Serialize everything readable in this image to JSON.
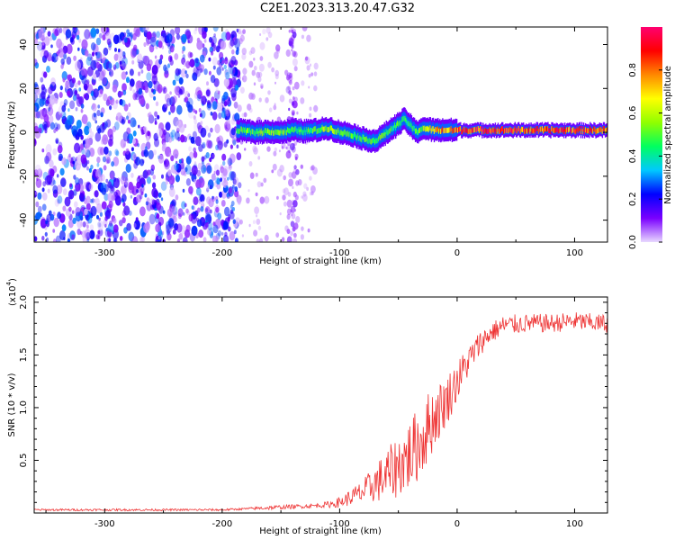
{
  "title": "C2E1.2023.313.20.47.G32",
  "chart_data": [
    {
      "type": "heatmap",
      "xlabel": "Height of straight line (km)",
      "ylabel": "Frequency (Hz)",
      "xlim": [
        -360,
        128
      ],
      "ylim": [
        -50,
        48
      ],
      "x_ticks": [
        -300,
        -200,
        -100,
        0,
        100
      ],
      "y_ticks": [
        -40,
        -20,
        0,
        20,
        40
      ],
      "x_tick_labels": [
        "-300",
        "-200",
        "-100",
        "0",
        "100"
      ],
      "y_tick_labels": [
        "-40",
        "-20",
        "0",
        "20",
        "40"
      ],
      "colorbar": {
        "label": "Normalized spectral amplitude",
        "range": [
          0,
          1
        ],
        "ticks": [
          0.0,
          0.2,
          0.4,
          0.6,
          0.8
        ],
        "tick_labels": [
          "0.0",
          "0.2",
          "0.4",
          "0.6",
          "0.8"
        ],
        "colors": [
          "#e8d8ff",
          "#7a00ff",
          "#0000ff",
          "#00c8ff",
          "#00ff60",
          "#90ff00",
          "#ffff00",
          "#ff8800",
          "#ff0000",
          "#ff0070"
        ]
      },
      "noise_region": {
        "x_range": [
          -360,
          -185
        ],
        "freq_range": [
          -50,
          48
        ],
        "amplitude": 0.15
      },
      "sparse_noise": [
        {
          "x_range": [
            -185,
            -120
          ],
          "amplitude": 0.05
        },
        {
          "x": -140,
          "amplitude": 0.1
        }
      ],
      "signal_trace": {
        "x": [
          -188,
          -180,
          -170,
          -160,
          -150,
          -140,
          -130,
          -120,
          -110,
          -100,
          -90,
          -80,
          -70,
          -60,
          -55,
          -50,
          -45,
          -40,
          -35,
          -30,
          -20,
          -10,
          0,
          20,
          40,
          60,
          80,
          100,
          120,
          128
        ],
        "freq": [
          1,
          0.5,
          0,
          0.5,
          0,
          1,
          0.5,
          1,
          2,
          0,
          -1,
          -3,
          -4,
          0,
          2,
          4,
          6,
          3,
          0,
          2,
          1,
          1,
          1,
          1,
          1,
          1,
          1,
          1,
          1,
          1
        ],
        "amplitude": [
          0.5,
          0.55,
          0.55,
          0.6,
          0.55,
          0.5,
          0.5,
          0.55,
          0.6,
          0.55,
          0.5,
          0.5,
          0.55,
          0.5,
          0.5,
          0.5,
          0.45,
          0.5,
          0.5,
          0.6,
          0.75,
          0.85,
          0.9,
          0.92,
          0.92,
          0.92,
          0.92,
          0.92,
          0.9,
          0.85
        ]
      }
    },
    {
      "type": "line",
      "xlabel": "Height of straight line (km)",
      "ylabel": "SNR (10 * v/v)",
      "y_multiplier": "(x10",
      "y_multiplier_exp": "4",
      "y_multiplier_close": ")",
      "xlim": [
        -360,
        128
      ],
      "ylim": [
        0,
        2.05
      ],
      "x_ticks": [
        -300,
        -200,
        -100,
        0,
        100
      ],
      "y_ticks": [
        0.5,
        1.0,
        1.5,
        2.0
      ],
      "x_tick_labels": [
        "-300",
        "-200",
        "-100",
        "0",
        "100"
      ],
      "y_tick_labels": [
        "0.5",
        "1.0",
        "1.5",
        "2.0"
      ],
      "color": "#ee3333",
      "series": [
        {
          "x": [
            -360,
            -300,
            -250,
            -200,
            -180,
            -160,
            -140,
            -120,
            -110,
            -100,
            -90,
            -80,
            -70,
            -60,
            -50,
            -40,
            -30,
            -25,
            -20,
            -10,
            0,
            10,
            20,
            30,
            40,
            60,
            80,
            100,
            120,
            128
          ],
          "y": [
            0.03,
            0.03,
            0.03,
            0.03,
            0.04,
            0.05,
            0.06,
            0.07,
            0.08,
            0.1,
            0.15,
            0.2,
            0.28,
            0.35,
            0.45,
            0.55,
            0.7,
            0.8,
            0.9,
            1.05,
            1.25,
            1.45,
            1.62,
            1.72,
            1.78,
            1.8,
            1.8,
            1.82,
            1.8,
            1.8
          ],
          "noise": [
            0.01,
            0.01,
            0.01,
            0.01,
            0.01,
            0.02,
            0.02,
            0.02,
            0.03,
            0.05,
            0.08,
            0.12,
            0.18,
            0.25,
            0.3,
            0.35,
            0.35,
            0.35,
            0.3,
            0.25,
            0.2,
            0.15,
            0.12,
            0.1,
            0.1,
            0.09,
            0.09,
            0.09,
            0.09,
            0.09
          ]
        }
      ]
    }
  ]
}
